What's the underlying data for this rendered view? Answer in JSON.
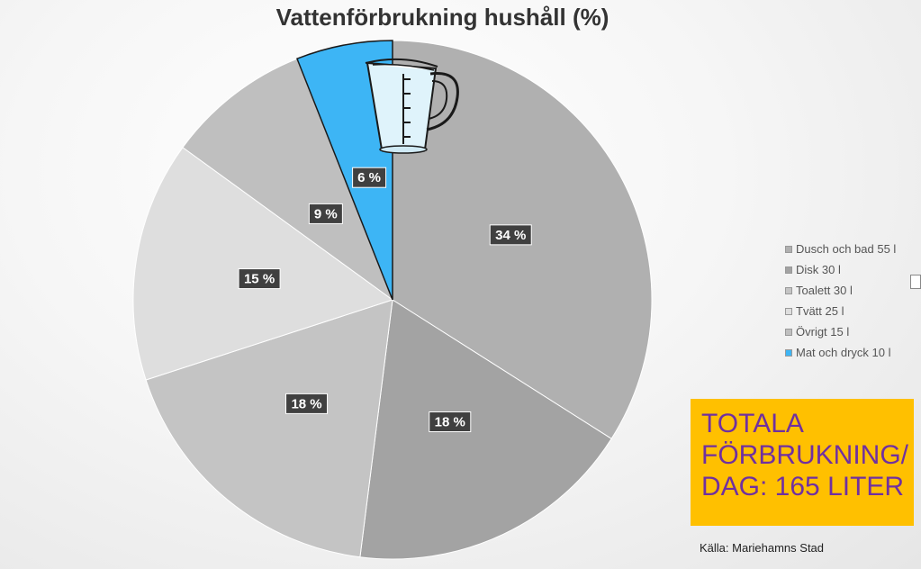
{
  "chart_data": {
    "type": "pie",
    "title": "Vattenförbrukning hushåll (%)",
    "slices": [
      {
        "label": "Dusch och bad 55 l",
        "value": 34,
        "data_label": "34 %",
        "color": "#b0b0b0"
      },
      {
        "label": "Disk 30 l",
        "value": 18,
        "data_label": "18 %",
        "color": "#a3a3a3"
      },
      {
        "label": "Toalett 30 l",
        "value": 18,
        "data_label": "18 %",
        "color": "#c4c4c4"
      },
      {
        "label": "Tvätt 25 l",
        "value": 15,
        "data_label": "15 %",
        "color": "#dedede"
      },
      {
        "label": "Övrigt 15 l",
        "value": 9,
        "data_label": "9 %",
        "color": "#bfbfbf"
      },
      {
        "label": "Mat och dryck 10 l",
        "value": 6,
        "data_label": "6 %",
        "color": "#3db5f5"
      }
    ],
    "legend_position": "right"
  },
  "total_box": {
    "line1": "TOTALA",
    "line2": "FÖRBRUKNING/",
    "line3": "DAG: 165 LITER",
    "background": "#ffc000",
    "text_color": "#7030a0"
  },
  "source": "Källa: Mariehamns Stad",
  "icons": {
    "measuring_jug": "measuring-jug-icon"
  }
}
